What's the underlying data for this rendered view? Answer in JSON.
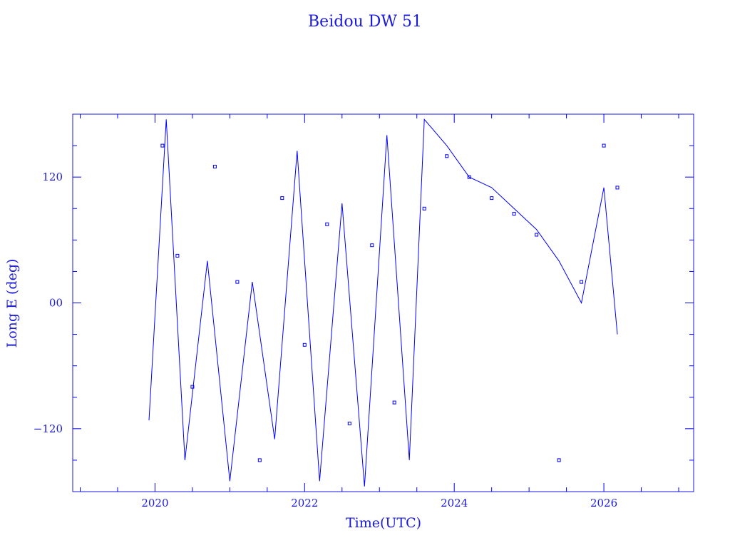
{
  "chart_data": {
    "type": "line",
    "title": "Beidou DW 51",
    "xlabel": "Time(UTC)",
    "ylabel": "Long E (deg)",
    "xlim": [
      2018.9,
      2027.2
    ],
    "ylim": [
      -180,
      180
    ],
    "x_ticks": [
      2020,
      2022,
      2024,
      2026
    ],
    "x_tick_labels": [
      "2020",
      "2022",
      "2024",
      "2026"
    ],
    "y_ticks": [
      -120,
      0,
      120
    ],
    "y_tick_labels": [
      "−120",
      "00",
      "120"
    ],
    "grid": false,
    "legend": "none",
    "color": "#0000ff",
    "series": [
      {
        "x": [
          2019.92,
          2020.15,
          2020.4,
          2020.7,
          2021.0,
          2021.3,
          2021.6,
          2021.9,
          2022.2,
          2022.5,
          2022.8,
          2023.1,
          2023.4,
          2023.6,
          2023.9,
          2024.2,
          2024.5,
          2024.8,
          2025.1,
          2025.4,
          2025.7,
          2026.0,
          2026.18
        ],
        "y": [
          -112,
          175,
          -150,
          40,
          -170,
          20,
          -130,
          145,
          -170,
          95,
          -175,
          160,
          -150,
          175,
          150,
          120,
          110,
          90,
          70,
          40,
          0,
          110,
          -30
        ]
      }
    ],
    "markers": [
      {
        "x": 2020.1,
        "y": 150
      },
      {
        "x": 2020.3,
        "y": 45
      },
      {
        "x": 2020.5,
        "y": -80
      },
      {
        "x": 2020.8,
        "y": 130
      },
      {
        "x": 2021.1,
        "y": 20
      },
      {
        "x": 2021.4,
        "y": -150
      },
      {
        "x": 2021.7,
        "y": 100
      },
      {
        "x": 2022.0,
        "y": -40
      },
      {
        "x": 2022.3,
        "y": 75
      },
      {
        "x": 2022.6,
        "y": -115
      },
      {
        "x": 2022.9,
        "y": 55
      },
      {
        "x": 2023.2,
        "y": -95
      },
      {
        "x": 2023.6,
        "y": 90
      },
      {
        "x": 2023.9,
        "y": 140
      },
      {
        "x": 2024.2,
        "y": 120
      },
      {
        "x": 2024.5,
        "y": 100
      },
      {
        "x": 2024.8,
        "y": 85
      },
      {
        "x": 2025.1,
        "y": 65
      },
      {
        "x": 2025.4,
        "y": -150
      },
      {
        "x": 2025.7,
        "y": 20
      },
      {
        "x": 2026.0,
        "y": 150
      },
      {
        "x": 2026.18,
        "y": 110
      }
    ]
  }
}
